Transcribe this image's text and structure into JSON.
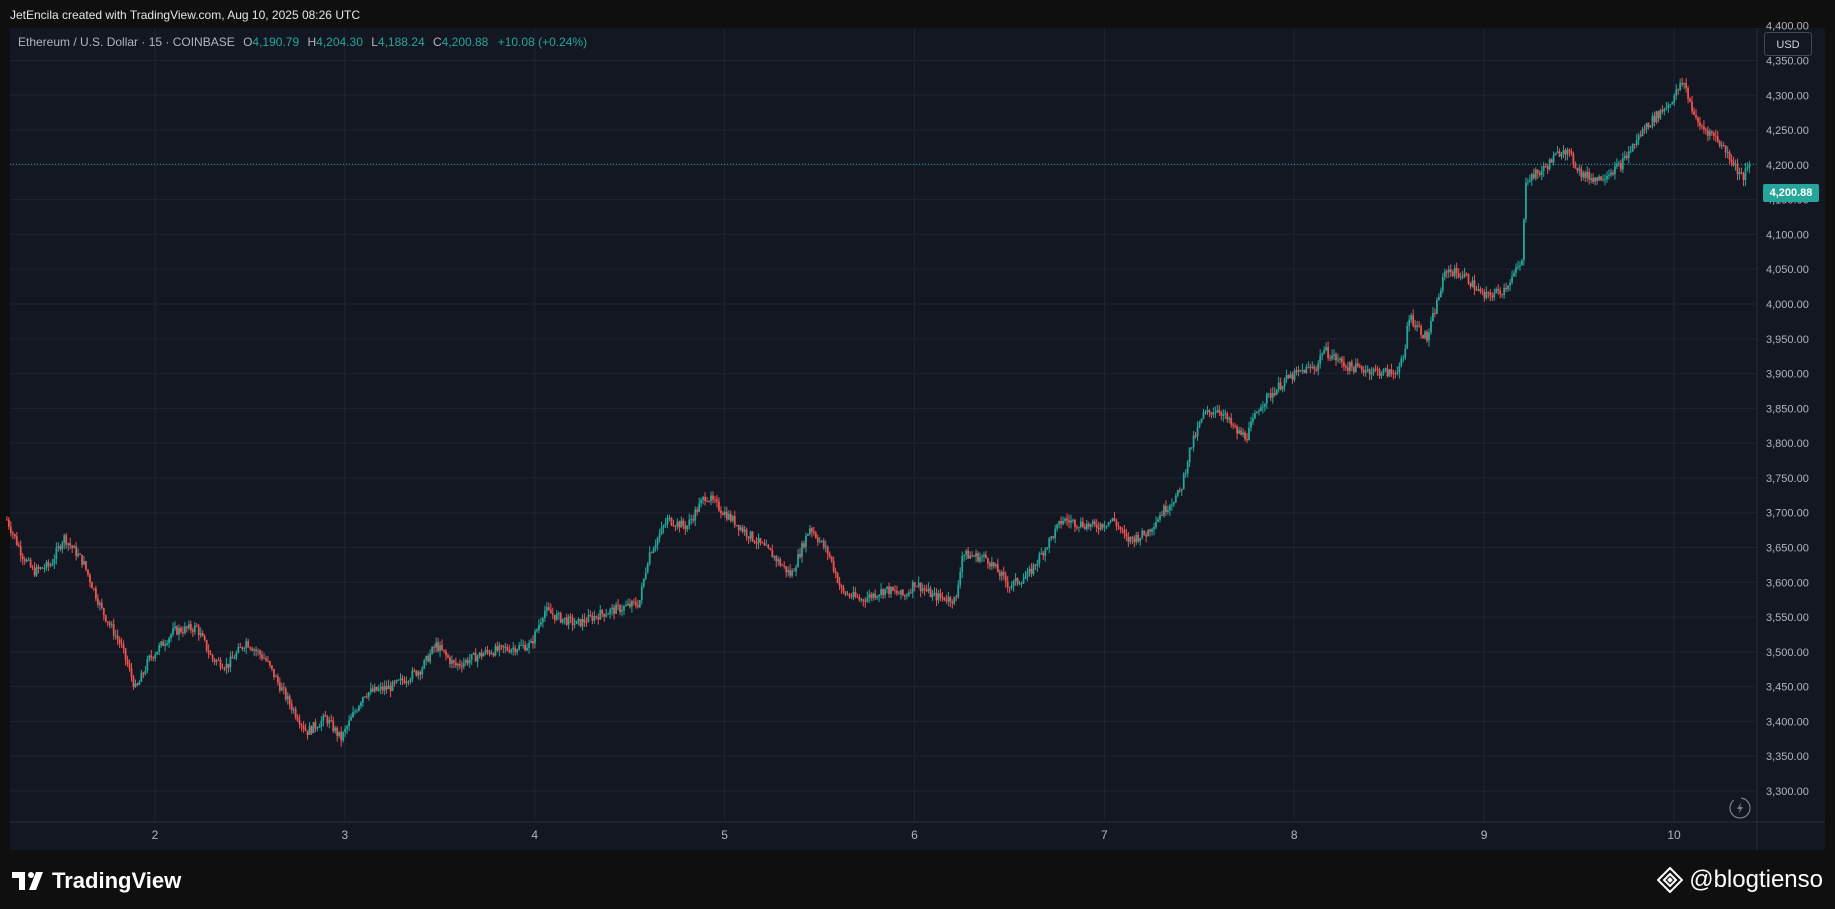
{
  "header": {
    "credit": "JetEncila created with TradingView.com, Aug 10, 2025 08:26 UTC"
  },
  "legend": {
    "symbol": "Ethereum / U.S. Dollar · 15 · COINBASE",
    "open_label": "O",
    "open_value": "4,190.79",
    "high_label": "H",
    "high_value": "4,204.30",
    "low_label": "L",
    "low_value": "4,188.24",
    "close_label": "C",
    "close_value": "4,200.88",
    "change": "+10.08 (+0.24%)"
  },
  "price_axis": {
    "currency": "USD",
    "last_price_tag": "4,200.88"
  },
  "footer": {
    "brand": "TradingView",
    "watermark": "@blogtienso"
  },
  "colors": {
    "background": "#131722",
    "up": "#26a69a",
    "down": "#ef5350",
    "grid": "#1f2433",
    "last_price_line": "#26a69a"
  },
  "icons": {
    "tv_logo": "tradingview-logo-icon",
    "watermark_logo": "binance-diamond-icon",
    "replay": "lightning-circle-icon"
  },
  "chart_data": {
    "type": "candlestick",
    "timeframe": "15",
    "ylim": [
      3250,
      4400
    ],
    "y_ticks": [
      3300,
      3350,
      3400,
      3450,
      3500,
      3550,
      3600,
      3650,
      3700,
      3750,
      3800,
      3850,
      3900,
      3950,
      4000,
      4050,
      4100,
      4150,
      4200,
      4250,
      4300,
      4350,
      4400
    ],
    "y_tick_labels": [
      "3,300.00",
      "3,350.00",
      "3,400.00",
      "3,450.00",
      "3,500.00",
      "3,550.00",
      "3,600.00",
      "3,650.00",
      "3,700.00",
      "3,750.00",
      "3,800.00",
      "3,850.00",
      "3,900.00",
      "3,950.00",
      "4,000.00",
      "4,050.00",
      "4,100.00",
      "4,150.00",
      "4,200.00",
      "4,250.00",
      "4,300.00",
      "4,350.00",
      "4,400.00"
    ],
    "xlim": [
      1.22,
      10.46
    ],
    "x_ticks": [
      2,
      3,
      4,
      5,
      6,
      7,
      8,
      9,
      10
    ],
    "x_tick_labels": [
      "2",
      "3",
      "4",
      "5",
      "6",
      "7",
      "8",
      "9",
      "10"
    ],
    "last_price": 4200.88,
    "price_path": [
      [
        1.22,
        3690
      ],
      [
        1.3,
        3640
      ],
      [
        1.36,
        3615
      ],
      [
        1.45,
        3625
      ],
      [
        1.52,
        3665
      ],
      [
        1.62,
        3630
      ],
      [
        1.72,
        3560
      ],
      [
        1.82,
        3510
      ],
      [
        1.9,
        3445
      ],
      [
        1.97,
        3490
      ],
      [
        2.1,
        3530
      ],
      [
        2.22,
        3535
      ],
      [
        2.3,
        3490
      ],
      [
        2.38,
        3480
      ],
      [
        2.48,
        3515
      ],
      [
        2.58,
        3490
      ],
      [
        2.7,
        3430
      ],
      [
        2.8,
        3385
      ],
      [
        2.9,
        3405
      ],
      [
        2.98,
        3375
      ],
      [
        3.1,
        3440
      ],
      [
        3.25,
        3450
      ],
      [
        3.4,
        3475
      ],
      [
        3.48,
        3510
      ],
      [
        3.58,
        3480
      ],
      [
        3.75,
        3500
      ],
      [
        3.98,
        3510
      ],
      [
        4.05,
        3560
      ],
      [
        4.12,
        3550
      ],
      [
        4.22,
        3540
      ],
      [
        4.35,
        3555
      ],
      [
        4.55,
        3570
      ],
      [
        4.6,
        3640
      ],
      [
        4.7,
        3690
      ],
      [
        4.8,
        3680
      ],
      [
        4.9,
        3725
      ],
      [
        5.0,
        3700
      ],
      [
        5.1,
        3675
      ],
      [
        5.25,
        3640
      ],
      [
        5.35,
        3610
      ],
      [
        5.45,
        3680
      ],
      [
        5.55,
        3640
      ],
      [
        5.62,
        3585
      ],
      [
        5.72,
        3575
      ],
      [
        5.85,
        3590
      ],
      [
        5.95,
        3580
      ],
      [
        6.0,
        3600
      ],
      [
        6.1,
        3580
      ],
      [
        6.22,
        3575
      ],
      [
        6.25,
        3640
      ],
      [
        6.38,
        3635
      ],
      [
        6.5,
        3595
      ],
      [
        6.6,
        3610
      ],
      [
        6.7,
        3655
      ],
      [
        6.78,
        3690
      ],
      [
        6.95,
        3680
      ],
      [
        7.05,
        3690
      ],
      [
        7.12,
        3660
      ],
      [
        7.22,
        3670
      ],
      [
        7.3,
        3700
      ],
      [
        7.4,
        3730
      ],
      [
        7.45,
        3790
      ],
      [
        7.52,
        3840
      ],
      [
        7.6,
        3850
      ],
      [
        7.7,
        3815
      ],
      [
        7.75,
        3810
      ],
      [
        7.82,
        3855
      ],
      [
        7.95,
        3890
      ],
      [
        8.05,
        3905
      ],
      [
        8.12,
        3910
      ],
      [
        8.15,
        3935
      ],
      [
        8.28,
        3910
      ],
      [
        8.4,
        3905
      ],
      [
        8.52,
        3900
      ],
      [
        8.58,
        3920
      ],
      [
        8.6,
        3985
      ],
      [
        8.7,
        3950
      ],
      [
        8.75,
        4000
      ],
      [
        8.8,
        4050
      ],
      [
        8.9,
        4040
      ],
      [
        9.0,
        4010
      ],
      [
        9.1,
        4020
      ],
      [
        9.2,
        4060
      ],
      [
        9.22,
        4180
      ],
      [
        9.3,
        4190
      ],
      [
        9.42,
        4225
      ],
      [
        9.52,
        4185
      ],
      [
        9.6,
        4180
      ],
      [
        9.72,
        4200
      ],
      [
        9.85,
        4255
      ],
      [
        9.98,
        4290
      ],
      [
        10.05,
        4320
      ],
      [
        10.12,
        4260
      ],
      [
        10.22,
        4240
      ],
      [
        10.3,
        4210
      ],
      [
        10.36,
        4180
      ],
      [
        10.4,
        4200.88
      ]
    ]
  }
}
